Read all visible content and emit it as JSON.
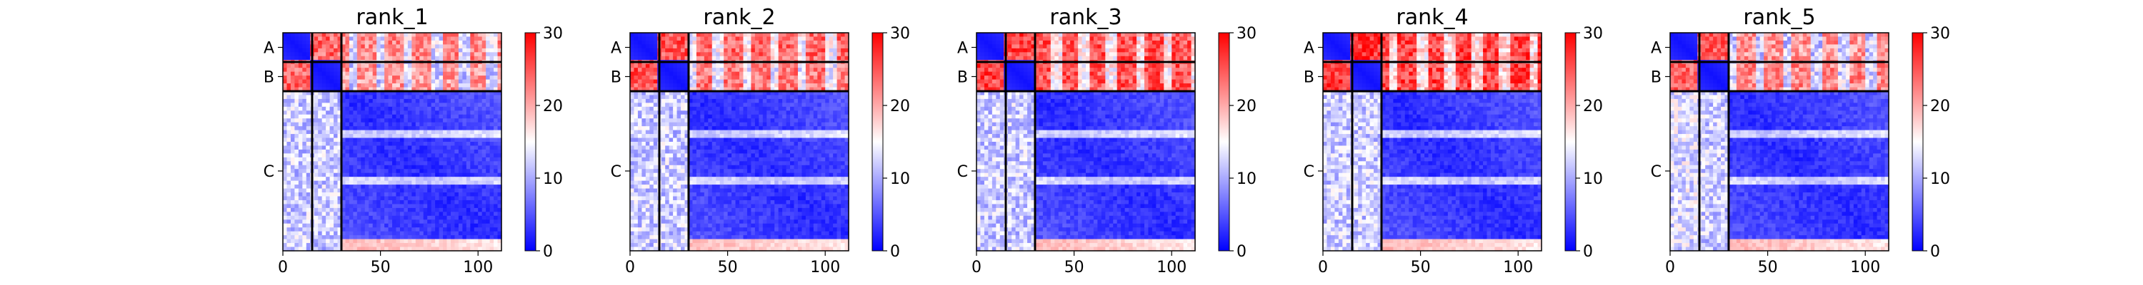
{
  "colors": {
    "low": "#0000ff",
    "mid": "#ffffff",
    "high": "#ff0000",
    "boundary_lines": "#000000"
  },
  "chart_data": [
    {
      "type": "heatmap",
      "title": "rank_1",
      "colormap": "bwr",
      "x_ticks": [
        0,
        50,
        100
      ],
      "x_tick_labels": [
        "0",
        "50",
        "100"
      ],
      "xlim": [
        0,
        112
      ],
      "ylim": [
        112,
        0
      ],
      "chain_labels": [
        "A",
        "B",
        "C"
      ],
      "chain_boundaries": [
        0,
        15,
        30,
        112
      ],
      "colorbar": {
        "range": [
          0,
          30
        ],
        "ticks": [
          0,
          10,
          20,
          30
        ],
        "tick_labels": [
          "0",
          "10",
          "20",
          "30"
        ]
      },
      "block_means": [
        [
          2,
          24,
          22
        ],
        [
          24,
          2,
          21
        ],
        [
          12,
          12,
          3
        ]
      ],
      "grid": false
    },
    {
      "type": "heatmap",
      "title": "rank_2",
      "colormap": "bwr",
      "x_ticks": [
        0,
        50,
        100
      ],
      "x_tick_labels": [
        "0",
        "50",
        "100"
      ],
      "xlim": [
        0,
        112
      ],
      "ylim": [
        112,
        0
      ],
      "chain_labels": [
        "A",
        "B",
        "C"
      ],
      "chain_boundaries": [
        0,
        15,
        30,
        112
      ],
      "colorbar": {
        "range": [
          0,
          30
        ],
        "ticks": [
          0,
          10,
          20,
          30
        ],
        "tick_labels": [
          "0",
          "10",
          "20",
          "30"
        ]
      },
      "block_means": [
        [
          2,
          25,
          24
        ],
        [
          25,
          2,
          23
        ],
        [
          12,
          12,
          3
        ]
      ],
      "grid": false
    },
    {
      "type": "heatmap",
      "title": "rank_3",
      "colormap": "bwr",
      "x_ticks": [
        0,
        50,
        100
      ],
      "x_tick_labels": [
        "0",
        "50",
        "100"
      ],
      "xlim": [
        0,
        112
      ],
      "ylim": [
        112,
        0
      ],
      "chain_labels": [
        "A",
        "B",
        "C"
      ],
      "chain_boundaries": [
        0,
        15,
        30,
        112
      ],
      "colorbar": {
        "range": [
          0,
          30
        ],
        "ticks": [
          0,
          10,
          20,
          30
        ],
        "tick_labels": [
          "0",
          "10",
          "20",
          "30"
        ]
      },
      "block_means": [
        [
          2,
          26,
          25
        ],
        [
          26,
          2,
          25
        ],
        [
          12,
          12,
          3
        ]
      ],
      "grid": false
    },
    {
      "type": "heatmap",
      "title": "rank_4",
      "colormap": "bwr",
      "x_ticks": [
        0,
        50,
        100
      ],
      "x_tick_labels": [
        "0",
        "50",
        "100"
      ],
      "xlim": [
        0,
        112
      ],
      "ylim": [
        112,
        0
      ],
      "chain_labels": [
        "A",
        "B",
        "C"
      ],
      "chain_boundaries": [
        0,
        15,
        30,
        112
      ],
      "colorbar": {
        "range": [
          0,
          30
        ],
        "ticks": [
          0,
          10,
          20,
          30
        ],
        "tick_labels": [
          "0",
          "10",
          "20",
          "30"
        ]
      },
      "block_means": [
        [
          2,
          27,
          26
        ],
        [
          27,
          2,
          26
        ],
        [
          12,
          12,
          3
        ]
      ],
      "grid": false
    },
    {
      "type": "heatmap",
      "title": "rank_5",
      "colormap": "bwr",
      "x_ticks": [
        0,
        50,
        100
      ],
      "x_tick_labels": [
        "0",
        "50",
        "100"
      ],
      "xlim": [
        0,
        112
      ],
      "ylim": [
        112,
        0
      ],
      "chain_labels": [
        "A",
        "B",
        "C"
      ],
      "chain_boundaries": [
        0,
        15,
        30,
        112
      ],
      "colorbar": {
        "range": [
          0,
          30
        ],
        "ticks": [
          0,
          10,
          20,
          30
        ],
        "tick_labels": [
          "0",
          "10",
          "20",
          "30"
        ]
      },
      "block_means": [
        [
          2,
          24,
          21
        ],
        [
          24,
          2,
          22
        ],
        [
          13,
          12,
          3
        ]
      ],
      "grid": false
    }
  ]
}
